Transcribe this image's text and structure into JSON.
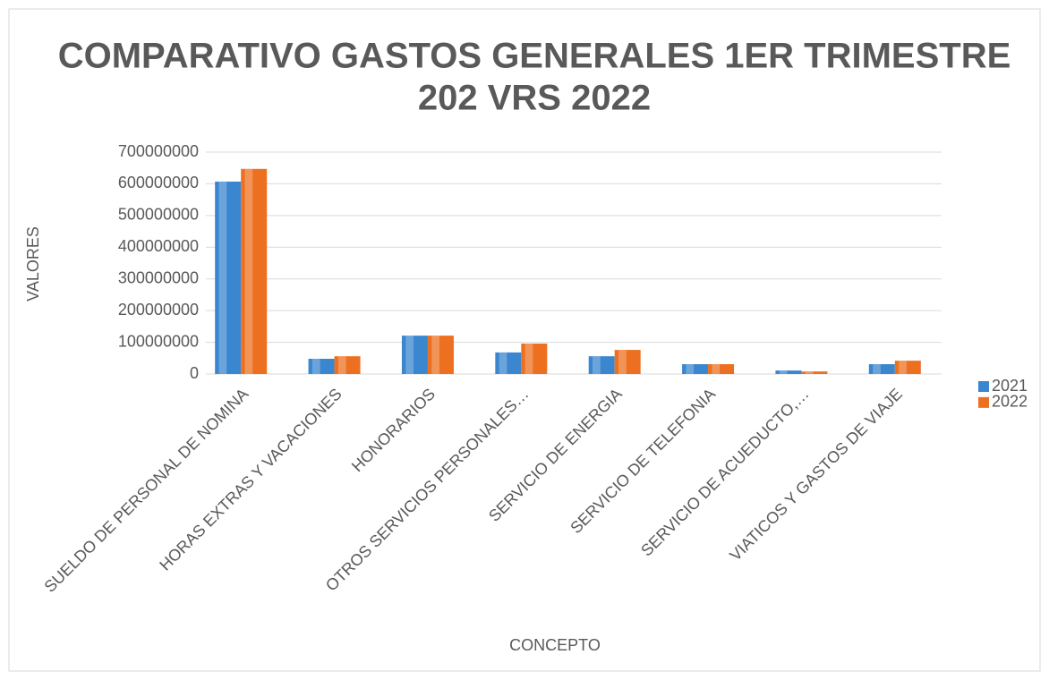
{
  "chart_data": {
    "type": "bar",
    "title": [
      "COMPARATIVO GASTOS GENERALES 1ER TRIMESTRE",
      "202 VRS 2022"
    ],
    "x_label": "CONCEPTO",
    "y_label": "VALORES",
    "categories": [
      "SUELDO DE PERSONAL DE NOMINA",
      "HORAS EXTRAS Y VACACIONES",
      "HONORARIOS",
      "OTROS SERVICIOS PERSONALES…",
      "SERVICIO DE ENERGIA",
      "SERVICIO DE TELEFONIA",
      "SERVICIO DE ACUEDUCTO,…",
      "VIATICOS Y GASTOS DE VIAJE"
    ],
    "series": [
      {
        "name": "2021",
        "color": "#3a86cf",
        "values": [
          607000000,
          48000000,
          121000000,
          68000000,
          56000000,
          31000000,
          11000000,
          31000000
        ]
      },
      {
        "name": "2022",
        "color": "#ed7020",
        "values": [
          647000000,
          56000000,
          121000000,
          96000000,
          76000000,
          31000000,
          8000000,
          42000000
        ]
      }
    ],
    "ylim": [
      0,
      700000000
    ],
    "yticks": [
      0,
      100000000,
      200000000,
      300000000,
      400000000,
      500000000,
      600000000,
      700000000
    ],
    "grid": true,
    "legend": "right"
  }
}
